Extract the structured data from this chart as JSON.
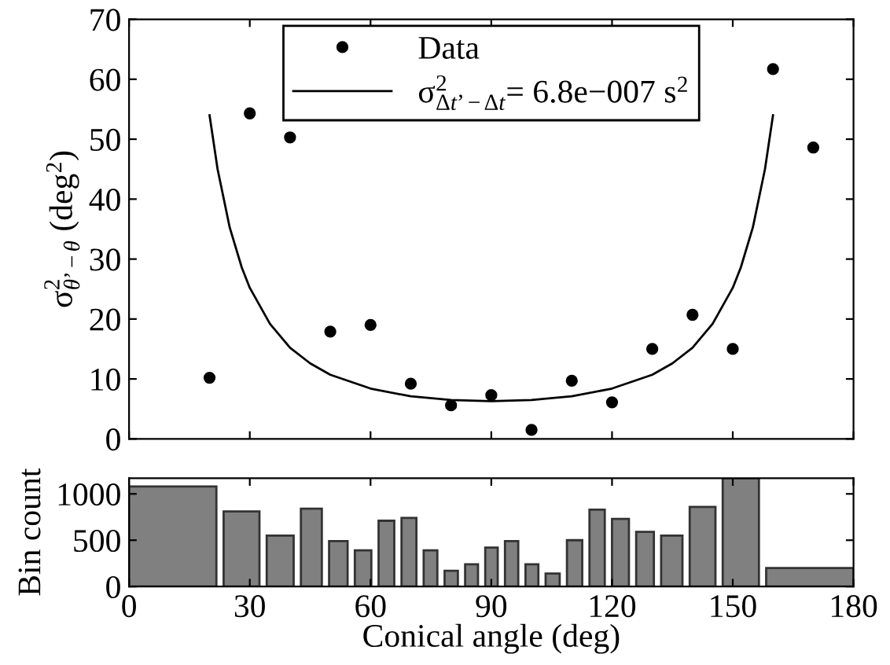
{
  "chart_data": [
    {
      "type": "scatter",
      "ylabel": "σ$^{2}$$_{θ’−θ}$ (deg$^{2}$)",
      "xlim": [
        0,
        180
      ],
      "xticks": [
        0,
        30,
        60,
        90,
        120,
        150,
        180
      ],
      "ylim": [
        0,
        70
      ],
      "yticks": [
        0,
        10,
        20,
        30,
        40,
        50,
        60,
        70
      ],
      "tick_labels": "y",
      "legend": "top",
      "grid": false,
      "series": [
        {
          "name": "Data",
          "type": "scatter",
          "marker": "circle",
          "color": "#000000",
          "x": [
            20,
            30,
            40,
            50,
            60,
            70,
            80,
            90,
            100,
            110,
            120,
            130,
            140,
            150,
            160,
            170
          ],
          "values": [
            10.2,
            54.3,
            50.3,
            17.9,
            19,
            9.2,
            5.6,
            7.3,
            1.5,
            9.7,
            6.1,
            15,
            20.7,
            15,
            61.7,
            48.6
          ]
        },
        {
          "name": "σ$^{2}$$_{Δt’−Δt}$= 6.8e−007 s$^{2}$",
          "type": "line",
          "marker": "none",
          "line_style": "solid",
          "color": "#000000",
          "x": [
            20,
            22,
            25,
            28,
            30,
            35,
            40,
            45,
            50,
            60,
            70,
            80,
            90,
            100,
            110,
            120,
            130,
            135,
            140,
            145,
            150,
            152,
            155,
            158,
            160
          ],
          "values": [
            54,
            45,
            35.3,
            28.6,
            25.2,
            19.2,
            15.2,
            12.6,
            10.7,
            8.4,
            7.1,
            6.5,
            6.3,
            6.5,
            7.1,
            8.4,
            10.7,
            12.6,
            15.2,
            19.2,
            25.2,
            28.6,
            35.3,
            45,
            54
          ]
        }
      ]
    },
    {
      "type": "histogram",
      "xlabel": "Conical angle (deg)",
      "ylabel": "Bin count",
      "xlim": [
        0,
        180
      ],
      "xticks": [
        0,
        30,
        60,
        90,
        120,
        150,
        180
      ],
      "ylim": [
        0,
        1170
      ],
      "yticks": [
        0,
        500,
        1000
      ],
      "grid": false,
      "color": "#808080",
      "bins": [
        0,
        22.6,
        33.3,
        41.8,
        48.8,
        55.2,
        61.1,
        66.8,
        72.3,
        77.5,
        82.6,
        87.6,
        92.5,
        97.6,
        102.6,
        107.9,
        113.5,
        119.1,
        125.1,
        131.3,
        138.4,
        146.6,
        157.4,
        180
      ],
      "values": [
        1080,
        810,
        550,
        840,
        490,
        390,
        710,
        740,
        390,
        170,
        240,
        420,
        490,
        240,
        140,
        500,
        830,
        730,
        590,
        550,
        860,
        1170,
        200
      ]
    }
  ]
}
